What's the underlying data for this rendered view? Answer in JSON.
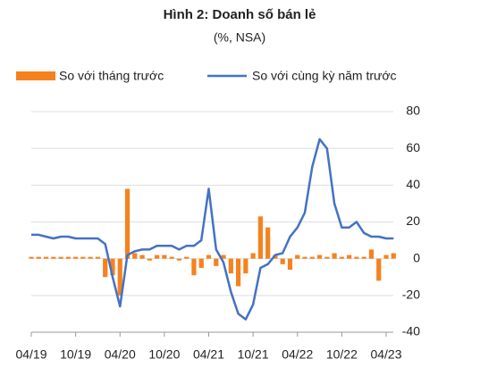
{
  "chart_data": {
    "type": "bar_line",
    "title": "Hình 2: Doanh số bán lẻ",
    "subtitle": "(%, NSA)",
    "categories": [
      "04/19",
      null,
      null,
      null,
      null,
      null,
      "10/19",
      null,
      null,
      null,
      null,
      null,
      "04/20",
      null,
      null,
      null,
      null,
      null,
      "10/20",
      null,
      null,
      null,
      null,
      null,
      "04/21",
      null,
      null,
      null,
      null,
      null,
      "10/21",
      null,
      null,
      null,
      null,
      null,
      "04/22",
      null,
      null,
      null,
      null,
      null,
      "10/22",
      null,
      null,
      null,
      null,
      null,
      "04/23",
      null
    ],
    "series": [
      {
        "name": "So với tháng trước",
        "type": "bar",
        "color": "#f5821f",
        "values": [
          1,
          1,
          1,
          1,
          1,
          1,
          1,
          1,
          1,
          1,
          -10,
          -9,
          -20,
          38,
          3,
          2,
          -1,
          2,
          2,
          1,
          -1,
          1,
          -9,
          -5,
          2,
          -4,
          2,
          -8,
          -15,
          -8,
          3,
          23,
          17,
          2,
          -3,
          -6,
          2,
          1,
          1,
          2,
          1,
          3,
          1,
          2,
          1,
          1,
          5,
          -12,
          2,
          3
        ]
      },
      {
        "name": "So với cùng kỳ năm trước",
        "type": "line",
        "color": "#4472c4",
        "values": [
          13,
          13,
          12,
          11,
          12,
          12,
          11,
          11,
          11,
          11,
          8,
          -10,
          -26,
          2,
          4,
          5,
          5,
          7,
          7,
          7,
          5,
          7,
          7,
          10,
          38,
          5,
          -2,
          -18,
          -30,
          -33,
          -25,
          -5,
          -3,
          2,
          3,
          12,
          17,
          25,
          50,
          65,
          60,
          30,
          17,
          17,
          20,
          14,
          12,
          12,
          11,
          11
        ]
      }
    ],
    "ylim": [
      -40,
      80
    ],
    "yticks": [
      -40,
      -20,
      0,
      20,
      40,
      60,
      80
    ],
    "grid": true
  }
}
